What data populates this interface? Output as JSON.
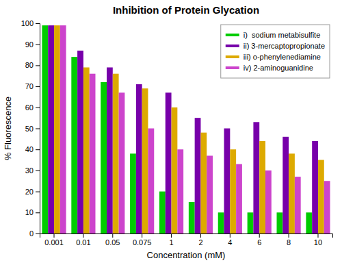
{
  "chart_data": {
    "type": "bar",
    "title": "Inhibition of Protein Glycation",
    "x_label": "Concentration (mM)",
    "y_label": "% Fluorescence",
    "categories": [
      "0.001",
      "0.01",
      "0.05",
      "0.075",
      "1",
      "2",
      "4",
      "6",
      "8",
      "10"
    ],
    "series": [
      {
        "name": "i)  sodium metabisulfite",
        "color": "#00cc00",
        "values": [
          99,
          84,
          72,
          38,
          20,
          15,
          10,
          10,
          10,
          10
        ]
      },
      {
        "name": "ii) 3-mercaptopropionate",
        "color": "#7700aa",
        "values": [
          99,
          87,
          79,
          71,
          67,
          55,
          50,
          53,
          46,
          44
        ]
      },
      {
        "name": "iii) o-phenylenediamine",
        "color": "#ddaa00",
        "values": [
          99,
          79,
          76,
          69,
          60,
          48,
          40,
          44,
          38,
          35
        ]
      },
      {
        "name": "iv) 2-aminoguanidine",
        "color": "#cc44cc",
        "values": [
          99,
          76,
          67,
          50,
          40,
          37,
          33,
          30,
          27,
          25
        ]
      }
    ],
    "ylim": [
      0,
      100
    ],
    "yticks": [
      0,
      10,
      20,
      30,
      40,
      50,
      60,
      70,
      80,
      90,
      100
    ],
    "grid": false,
    "legend": "top-right"
  }
}
